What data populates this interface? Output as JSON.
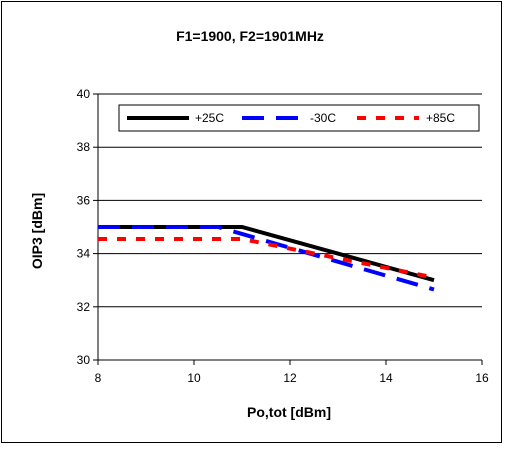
{
  "chart_data": {
    "type": "line",
    "title": "F1=1900, F2=1901MHz",
    "xlabel": "Po,tot [dBm]",
    "ylabel": "OIP3 [dBm]",
    "xlim": [
      8,
      16
    ],
    "ylim": [
      30,
      40
    ],
    "xticks": [
      8,
      10,
      12,
      14,
      16
    ],
    "yticks": [
      30,
      32,
      34,
      36,
      38,
      40
    ],
    "grid": "horizontal",
    "legend_position": "top",
    "series": [
      {
        "name": "+25C",
        "color": "#000000",
        "style": "solid",
        "x": [
          8,
          11,
          15
        ],
        "y": [
          35,
          35,
          33
        ]
      },
      {
        "name": "-30C",
        "color": "#0000ff",
        "style": "long-dash",
        "x": [
          8,
          10.5,
          15
        ],
        "y": [
          35,
          35,
          32.65
        ]
      },
      {
        "name": "+85C",
        "color": "#ff0000",
        "style": "short-dash",
        "x": [
          8,
          11,
          15
        ],
        "y": [
          34.55,
          34.55,
          33.1
        ]
      }
    ]
  }
}
